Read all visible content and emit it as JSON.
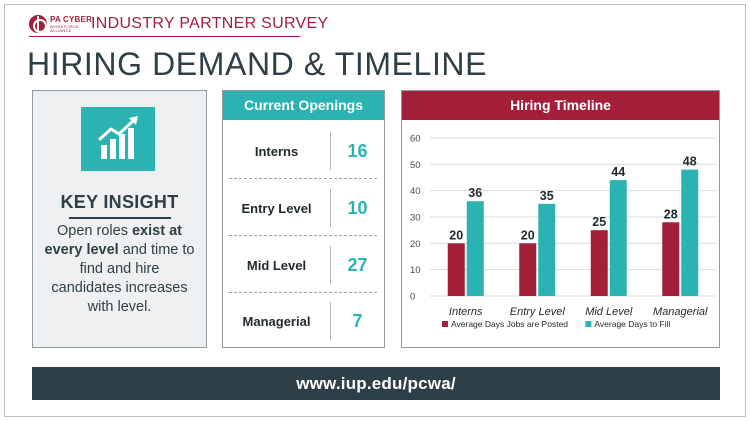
{
  "header": {
    "logo": {
      "line1": "PA CYBER",
      "line2": "WORKFORCE",
      "line3": "ALLIANCE"
    },
    "survey_title": "INDUSTRY PARTNER SURVEY",
    "page_title": "HIRING DEMAND & TIMELINE"
  },
  "insight": {
    "icon": "chart-trend-up-icon",
    "heading": "KEY INSIGHT",
    "body_pre": "Open roles ",
    "body_bold": "exist at every level",
    "body_post": " and time to find and hire candidates increases with level."
  },
  "openings": {
    "title": "Current Openings",
    "rows": [
      {
        "label": "Interns",
        "count": "16"
      },
      {
        "label": "Entry Level",
        "count": "10"
      },
      {
        "label": "Mid Level",
        "count": "27"
      },
      {
        "label": "Managerial",
        "count": "7"
      }
    ]
  },
  "colors": {
    "teal": "#2bb3b1",
    "crimson": "#a31f3a",
    "slate": "#2e3f47"
  },
  "chart_data": {
    "type": "bar",
    "title": "Hiring Timeline",
    "categories": [
      "Interns",
      "Entry Level",
      "Mid Level",
      "Managerial"
    ],
    "series": [
      {
        "name": "Average Days Jobs are Posted",
        "color": "#a31f3a",
        "values": [
          20,
          20,
          25,
          28
        ]
      },
      {
        "name": "Average Days to Fill",
        "color": "#2bb3b1",
        "values": [
          36,
          35,
          44,
          48
        ]
      }
    ],
    "yticks": [
      0,
      10,
      20,
      30,
      40,
      50,
      60
    ],
    "ylim": [
      0,
      60
    ],
    "grid": true,
    "data_labels": true,
    "legend_position": "bottom"
  },
  "footer": {
    "url": "www.iup.edu/pcwa/"
  }
}
